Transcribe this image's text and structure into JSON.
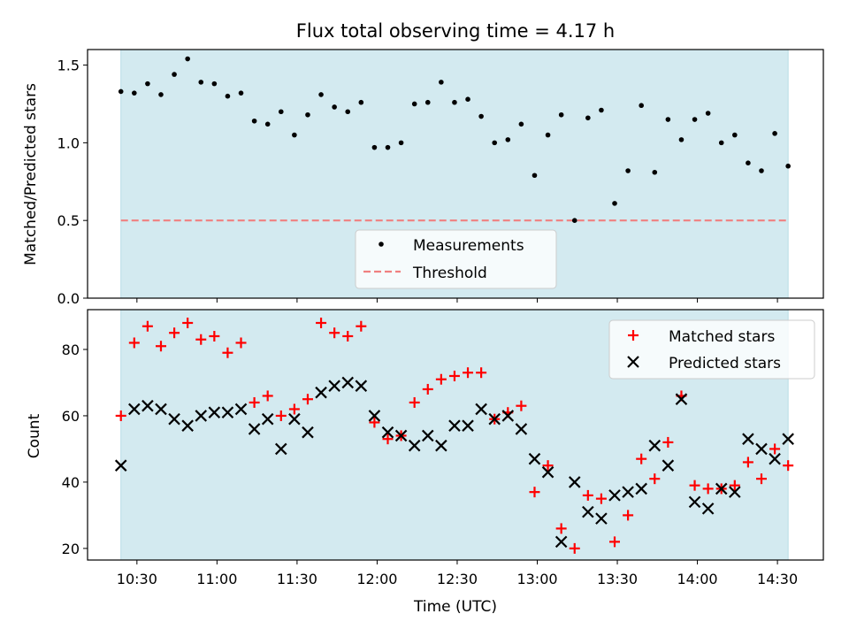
{
  "chart_data": {
    "type": "scatter",
    "title": "Flux total observing time = 4.17 h",
    "xlabel": "Time (UTC)",
    "x_tick_labels": [
      "10:30",
      "11:00",
      "11:30",
      "12:00",
      "12:30",
      "13:00",
      "13:30",
      "14:00",
      "14:30"
    ],
    "x_tick_minutes": [
      630,
      660,
      690,
      720,
      750,
      780,
      810,
      840,
      870
    ],
    "x_range_minutes": [
      611.5,
      887.2
    ],
    "observing_window_minutes": [
      624,
      874
    ],
    "times_minutes": [
      624,
      629,
      634,
      639,
      644,
      649,
      654,
      659,
      664,
      669,
      674,
      679,
      684,
      689,
      694,
      699,
      704,
      709,
      714,
      719,
      724,
      729,
      734,
      739,
      744,
      749,
      754,
      759,
      764,
      769,
      774,
      779,
      784,
      789,
      794,
      799,
      804,
      809,
      814,
      819,
      824,
      829,
      834,
      839,
      844,
      849,
      854,
      859,
      864,
      869,
      874
    ],
    "panels": [
      {
        "ylabel": "Matched/Predicted stars",
        "ylim": [
          0.0,
          1.6
        ],
        "y_ticks": [
          "0.0",
          "0.5",
          "1.0",
          "1.5"
        ],
        "y_tick_values": [
          0.0,
          0.5,
          1.0,
          1.5
        ],
        "legend_position": "lower-center",
        "threshold": {
          "name": "Threshold",
          "value": 0.5,
          "color": "#f08080",
          "style": "dashed"
        },
        "series": [
          {
            "name": "Measurements",
            "marker": "dot",
            "color": "#000000",
            "values": [
              1.33,
              1.32,
              1.38,
              1.31,
              1.44,
              1.54,
              1.39,
              1.38,
              1.3,
              1.32,
              1.14,
              1.12,
              1.2,
              1.05,
              1.18,
              1.31,
              1.23,
              1.2,
              1.26,
              0.97,
              0.97,
              1.0,
              1.25,
              1.26,
              1.39,
              1.26,
              1.28,
              1.17,
              1.0,
              1.02,
              1.12,
              0.79,
              1.05,
              1.18,
              0.5,
              1.16,
              1.21,
              0.61,
              0.82,
              1.24,
              0.81,
              1.15,
              1.02,
              1.15,
              1.19,
              1.0,
              1.05,
              0.87,
              0.82,
              1.06,
              0.85
            ]
          }
        ]
      },
      {
        "ylabel": "Count",
        "ylim": [
          16.5,
          92
        ],
        "y_ticks": [
          "20",
          "40",
          "60",
          "80"
        ],
        "y_tick_values": [
          20,
          40,
          60,
          80
        ],
        "legend_position": "upper-right",
        "series": [
          {
            "name": "Matched stars",
            "marker": "plus",
            "color": "#ff0000",
            "values": [
              60,
              82,
              87,
              81,
              85,
              88,
              83,
              84,
              79,
              82,
              64,
              66,
              60,
              62,
              65,
              88,
              85,
              84,
              87,
              58,
              53,
              54,
              64,
              68,
              71,
              72,
              73,
              73,
              59,
              61,
              63,
              37,
              45,
              26,
              20,
              36,
              35,
              22,
              30,
              47,
              41,
              52,
              66,
              39,
              38,
              38,
              39,
              46,
              41,
              50,
              45
            ]
          },
          {
            "name": "Predicted stars",
            "marker": "x",
            "color": "#000000",
            "values": [
              45,
              62,
              63,
              62,
              59,
              57,
              60,
              61,
              61,
              62,
              56,
              59,
              50,
              59,
              55,
              67,
              69,
              70,
              69,
              60,
              55,
              54,
              51,
              54,
              51,
              57,
              57,
              62,
              59,
              60,
              56,
              47,
              43,
              22,
              40,
              31,
              29,
              36,
              37,
              38,
              51,
              45,
              65,
              34,
              32,
              38,
              37,
              53,
              50,
              47,
              53
            ]
          }
        ]
      }
    ],
    "background_color": "#d3eaf0"
  }
}
